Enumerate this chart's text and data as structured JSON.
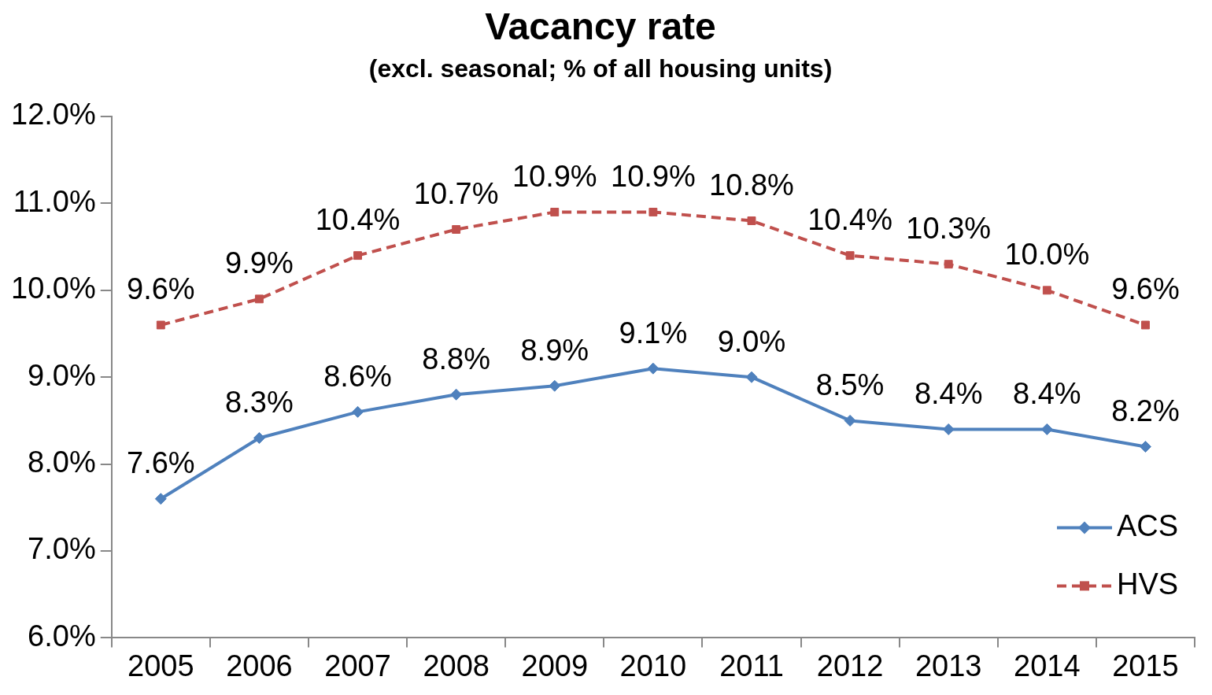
{
  "chart_data": {
    "type": "line",
    "title": "Vacancy rate",
    "subtitle": "(excl. seasonal; % of all housing units)",
    "categories": [
      "2005",
      "2006",
      "2007",
      "2008",
      "2009",
      "2010",
      "2011",
      "2012",
      "2013",
      "2014",
      "2015"
    ],
    "series": [
      {
        "name": "ACS",
        "color": "#4f81bd",
        "marker": "diamond",
        "line_style": "solid",
        "values": [
          7.6,
          8.3,
          8.6,
          8.8,
          8.9,
          9.1,
          9.0,
          8.5,
          8.4,
          8.4,
          8.2
        ],
        "value_labels": [
          "7.6%",
          "8.3%",
          "8.6%",
          "8.8%",
          "8.9%",
          "9.1%",
          "9.0%",
          "8.5%",
          "8.4%",
          "8.4%",
          "8.2%"
        ]
      },
      {
        "name": "HVS",
        "color": "#c0504d",
        "marker": "square",
        "line_style": "dashed",
        "values": [
          9.6,
          9.9,
          10.4,
          10.7,
          10.9,
          10.9,
          10.8,
          10.4,
          10.3,
          10.0,
          9.6
        ],
        "value_labels": [
          "9.6%",
          "9.9%",
          "10.4%",
          "10.7%",
          "10.9%",
          "10.9%",
          "10.8%",
          "10.4%",
          "10.3%",
          "10.0%",
          "9.6%"
        ]
      }
    ],
    "ylim": [
      6,
      12
    ],
    "yticks": [
      {
        "value": 6,
        "label": "6.0%"
      },
      {
        "value": 7,
        "label": "7.0%"
      },
      {
        "value": 8,
        "label": "8.0%"
      },
      {
        "value": 9,
        "label": "9.0%"
      },
      {
        "value": 10,
        "label": "10.0%"
      },
      {
        "value": 11,
        "label": "11.0%"
      },
      {
        "value": 12,
        "label": "12.0%"
      }
    ],
    "grid": false,
    "legend": "bottom right"
  }
}
